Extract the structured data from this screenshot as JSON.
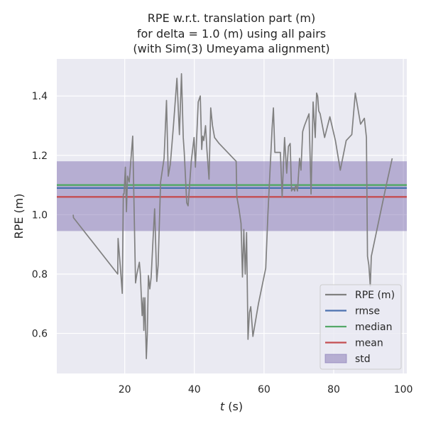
{
  "chart_data": {
    "type": "line",
    "title": [
      "RPE w.r.t. translation part (m)",
      "for delta = 1.0 (m) using all pairs",
      "(with Sim(3) Umeyama alignment)"
    ],
    "xlabel_italic": "t",
    "xlabel_rest": " (s)",
    "ylabel": "RPE (m)",
    "xlim": [
      0.5,
      101
    ],
    "ylim": [
      0.465,
      1.525
    ],
    "xticks": [
      20,
      40,
      60,
      80,
      100
    ],
    "yticks": [
      0.6,
      0.8,
      1.0,
      1.2,
      1.4
    ],
    "xtick_labels": [
      "20",
      "40",
      "60",
      "80",
      "100"
    ],
    "ytick_labels": [
      "0.6",
      "0.8",
      "1.0",
      "1.2",
      "1.4"
    ],
    "grid": true,
    "legend_position": "lower-right",
    "series": [
      {
        "name": "RPE (m)",
        "color": "#808080",
        "x": [
          5.2,
          5.3,
          18,
          18.1,
          18.7,
          19.3,
          19.6,
          19.8,
          20.2,
          20.5,
          20.8,
          21.3,
          22.3,
          23.1,
          23.5,
          24.2,
          24.5,
          25,
          25.3,
          25.5,
          25.8,
          26.2,
          26.5,
          26.8,
          27.2,
          27.6,
          28.1,
          28.6,
          29.2,
          29.6,
          30.3,
          31.3,
          32,
          32.5,
          33.1,
          34,
          35,
          35.7,
          36.3,
          36.8,
          37.1,
          37.8,
          38.2,
          39.1,
          39.9,
          40.3,
          41.1,
          41.7,
          42.1,
          42.4,
          42.7,
          43.2,
          43.6,
          44.2,
          44.7,
          45.2,
          45.8,
          47.1,
          52,
          52.2,
          52.8,
          53.4,
          53.8,
          54.2,
          54.6,
          55,
          55.4,
          55.8,
          56.2,
          56.8,
          58.4,
          60.5,
          61.1,
          62.3,
          62.7,
          63.1,
          64.7,
          65.2,
          65.9,
          66.5,
          67,
          67.5,
          67.9,
          68.4,
          68.8,
          69.1,
          69.6,
          70.2,
          70.6,
          71.1,
          71.6,
          72.9,
          73.5,
          74.1,
          74.7,
          75.1,
          75.4,
          75.7,
          76.1,
          77.4,
          78.9,
          80.5,
          81.9,
          83.6,
          85.2,
          86.2,
          87.7,
          88.8,
          89.4,
          89.7,
          90.1,
          90.5,
          90.8,
          95.1,
          96.8
        ],
        "y": [
          1.0,
          0.99,
          0.8,
          0.92,
          0.83,
          0.735,
          1.07,
          1.07,
          1.16,
          1.01,
          1.13,
          1.11,
          1.265,
          0.77,
          0.8,
          0.84,
          0.8,
          0.66,
          0.72,
          0.61,
          0.72,
          0.515,
          0.6,
          0.795,
          0.75,
          0.79,
          0.91,
          1.02,
          0.775,
          0.83,
          1.11,
          1.19,
          1.385,
          1.13,
          1.17,
          1.3,
          1.46,
          1.27,
          1.475,
          1.26,
          1.21,
          1.04,
          1.03,
          1.18,
          1.26,
          1.16,
          1.38,
          1.4,
          1.22,
          1.265,
          1.25,
          1.3,
          1.22,
          1.12,
          1.36,
          1.3,
          1.26,
          1.24,
          1.18,
          1.06,
          1.02,
          0.97,
          0.79,
          0.95,
          0.8,
          0.94,
          0.58,
          0.67,
          0.69,
          0.59,
          0.7,
          0.82,
          1.0,
          1.29,
          1.36,
          1.21,
          1.21,
          1.06,
          1.26,
          1.14,
          1.23,
          1.24,
          1.08,
          1.09,
          1.08,
          1.1,
          1.08,
          1.19,
          1.15,
          1.28,
          1.3,
          1.34,
          1.07,
          1.38,
          1.26,
          1.41,
          1.4,
          1.35,
          1.34,
          1.26,
          1.33,
          1.25,
          1.15,
          1.25,
          1.27,
          1.41,
          1.305,
          1.325,
          1.26,
          0.86,
          0.83,
          0.76,
          0.86,
          1.1,
          1.19
        ]
      },
      {
        "name": "rmse",
        "color": "#4c72b0",
        "value": 1.09
      },
      {
        "name": "median",
        "color": "#55a868",
        "value": 1.1
      },
      {
        "name": "mean",
        "color": "#c44e52",
        "value": 1.06
      },
      {
        "name": "std",
        "color": "#8172b2",
        "range": [
          0.945,
          1.18
        ]
      }
    ]
  }
}
